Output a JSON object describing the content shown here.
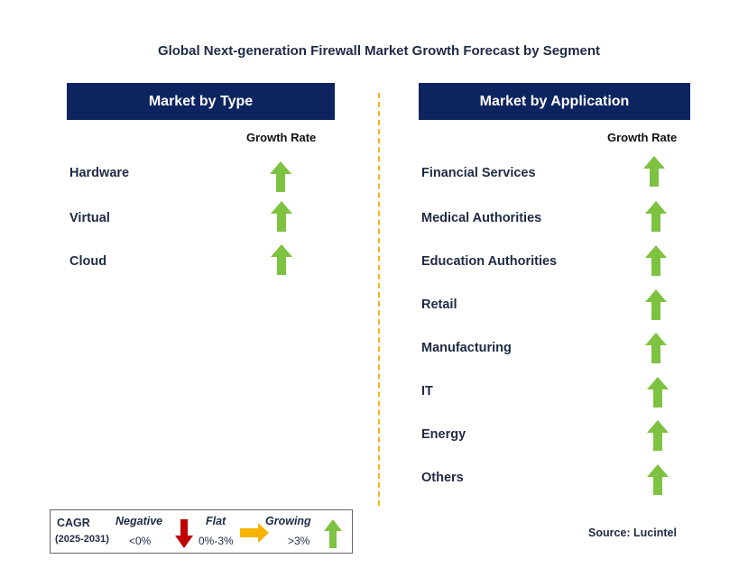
{
  "title": "Global Next-generation Firewall Market Growth Forecast by Segment",
  "left_panel": {
    "header": "Market by Type",
    "growth_rate_label": "Growth Rate",
    "items": [
      {
        "label": "Hardware",
        "trend": "growing"
      },
      {
        "label": "Virtual",
        "trend": "growing"
      },
      {
        "label": "Cloud",
        "trend": "growing"
      }
    ]
  },
  "right_panel": {
    "header": "Market by Application",
    "growth_rate_label": "Growth Rate",
    "items": [
      {
        "label": "Financial Services",
        "trend": "growing"
      },
      {
        "label": "Medical Authorities",
        "trend": "growing"
      },
      {
        "label": "Education Authorities",
        "trend": "growing"
      },
      {
        "label": "Retail",
        "trend": "growing"
      },
      {
        "label": "Manufacturing",
        "trend": "growing"
      },
      {
        "label": "IT",
        "trend": "growing"
      },
      {
        "label": "Energy",
        "trend": "growing"
      },
      {
        "label": "Others",
        "trend": "growing"
      }
    ]
  },
  "legend": {
    "cagr_label": "CAGR",
    "period": "(2025-2031)",
    "negative_label": "Negative",
    "negative_range": "<0%",
    "flat_label": "Flat",
    "flat_range": "0%-3%",
    "growing_label": "Growing",
    "growing_range": ">3%"
  },
  "source": "Source: Lucintel",
  "colors": {
    "header_bg": "#0d2461",
    "growing": "#7ec241",
    "negative": "#c00000",
    "flat": "#f5b400",
    "divider": "#f2b51a"
  }
}
